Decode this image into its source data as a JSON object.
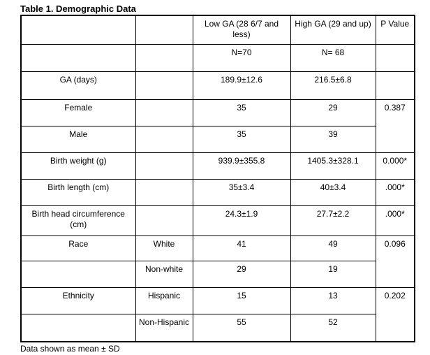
{
  "title": "Table 1. Demographic Data",
  "footnote": "Data shown as mean ± SD",
  "header": {
    "col_low": "Low GA (28 6/7 and less)",
    "col_high": "High GA (29 and up)",
    "col_p": "P Value",
    "n_low": "N=70",
    "n_high": "N= 68"
  },
  "rows": {
    "ga": {
      "label": "GA (days)",
      "low": "189.9±12.6",
      "high": "216.5±6.8"
    },
    "female": {
      "label": "Female",
      "low": "35",
      "high": "29"
    },
    "male": {
      "label": "Male",
      "low": "35",
      "high": "39"
    },
    "sex_p": "0.387",
    "birth_weight": {
      "label": "Birth weight (g)",
      "low": "939.9±355.8",
      "high": "1405.3±328.1",
      "p": "0.000*"
    },
    "birth_length": {
      "label": "Birth length (cm)",
      "low": "35±3.4",
      "high": "40±3.4",
      "p": ".000*"
    },
    "head_circ": {
      "label": "Birth head circumference (cm)",
      "low": "24.3±1.9",
      "high": "27.7±2.2",
      "p": ".000*"
    },
    "race": {
      "label": "Race",
      "p": "0.096",
      "white": {
        "sub": "White",
        "low": "41",
        "high": "49"
      },
      "nonwhite": {
        "sub": "Non-white",
        "low": "29",
        "high": "19"
      }
    },
    "ethnicity": {
      "label": "Ethnicity",
      "p": "0.202",
      "hispanic": {
        "sub": "Hispanic",
        "low": "15",
        "high": "13"
      },
      "nonhispanic": {
        "sub": "Non-Hispanic",
        "low": "55",
        "high": "52"
      }
    }
  }
}
